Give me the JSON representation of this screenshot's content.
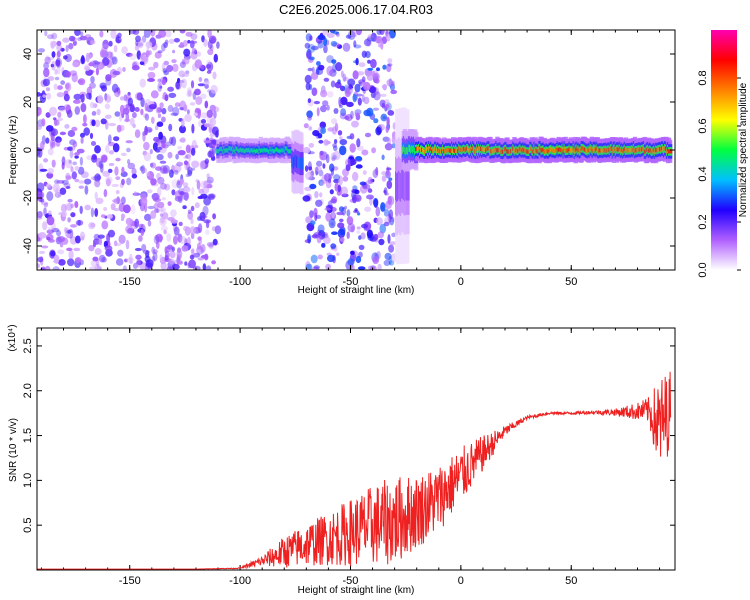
{
  "title": "C2E6.2025.006.17.04.R03",
  "chart_data": [
    {
      "type": "heatmap",
      "xlabel": "Height of straight line (km)",
      "ylabel": "Frequency (Hz)",
      "xlim": [
        -192,
        97
      ],
      "ylim": [
        -50,
        50
      ],
      "xticks": [
        -150,
        -100,
        -50,
        0,
        50
      ],
      "yticks": [
        -40,
        -20,
        0,
        20,
        40
      ],
      "colorbar": {
        "label": "Normalized spectral amplitude",
        "range": [
          0,
          1
        ],
        "ticks": [
          0.0,
          0.2,
          0.4,
          0.6,
          0.8
        ],
        "colors": [
          "#ffffff",
          "#b060ff",
          "#2000ff",
          "#00c0ff",
          "#00ff40",
          "#ffff00",
          "#ff8000",
          "#ff0000",
          "#ff00b0"
        ]
      },
      "regions": [
        {
          "x": [
            -192,
            -110
          ],
          "pattern": "scattered",
          "amplitude": 0.15
        },
        {
          "x": [
            -110,
            -75
          ],
          "pattern": "band",
          "center": 0,
          "width": 6,
          "amplitude": 0.45
        },
        {
          "x": [
            -76,
            -72
          ],
          "pattern": "band",
          "center": -5,
          "width": 16,
          "amplitude": 0.3
        },
        {
          "x": [
            -70,
            -30
          ],
          "pattern": "scattered",
          "amplitude": 0.2
        },
        {
          "x": [
            -29,
            -24
          ],
          "pattern": "band",
          "center": -15,
          "width": 40,
          "amplitude": 0.15
        },
        {
          "x": [
            -26,
            -20
          ],
          "pattern": "band",
          "center": 0,
          "width": 10,
          "amplitude": 0.5
        },
        {
          "x": [
            -20,
            95
          ],
          "pattern": "band",
          "center": 0,
          "width": 6,
          "amplitude": 0.8
        }
      ]
    },
    {
      "type": "line",
      "xlabel": "Height of straight line (km)",
      "ylabel": "SNR (10 * v/v)",
      "yscale_label": "(x10⁴)",
      "xlim": [
        -192,
        97
      ],
      "ylim": [
        0,
        2.7
      ],
      "xticks": [
        -150,
        -100,
        -50,
        0,
        50
      ],
      "yticks": [
        0.5,
        1.0,
        1.5,
        2.0,
        2.5
      ],
      "series": [
        {
          "color": "#ee2020",
          "x": [
            -192,
            -120,
            -100,
            -90,
            -80,
            -70,
            -60,
            -50,
            -40,
            -30,
            -20,
            -10,
            0,
            10,
            20,
            30,
            40,
            50,
            60,
            70,
            80,
            85,
            90,
            95
          ],
          "y": [
            0.01,
            0.01,
            0.02,
            0.1,
            0.2,
            0.28,
            0.35,
            0.42,
            0.5,
            0.55,
            0.65,
            0.8,
            1.05,
            1.3,
            1.55,
            1.7,
            1.75,
            1.75,
            1.76,
            1.76,
            1.77,
            1.78,
            1.6,
            1.8
          ],
          "noise": [
            0,
            0,
            0.005,
            0.06,
            0.18,
            0.24,
            0.3,
            0.38,
            0.45,
            0.5,
            0.42,
            0.38,
            0.32,
            0.2,
            0.06,
            0.02,
            0.015,
            0.015,
            0.02,
            0.04,
            0.1,
            0.15,
            0.55,
            0.45
          ]
        }
      ]
    }
  ]
}
